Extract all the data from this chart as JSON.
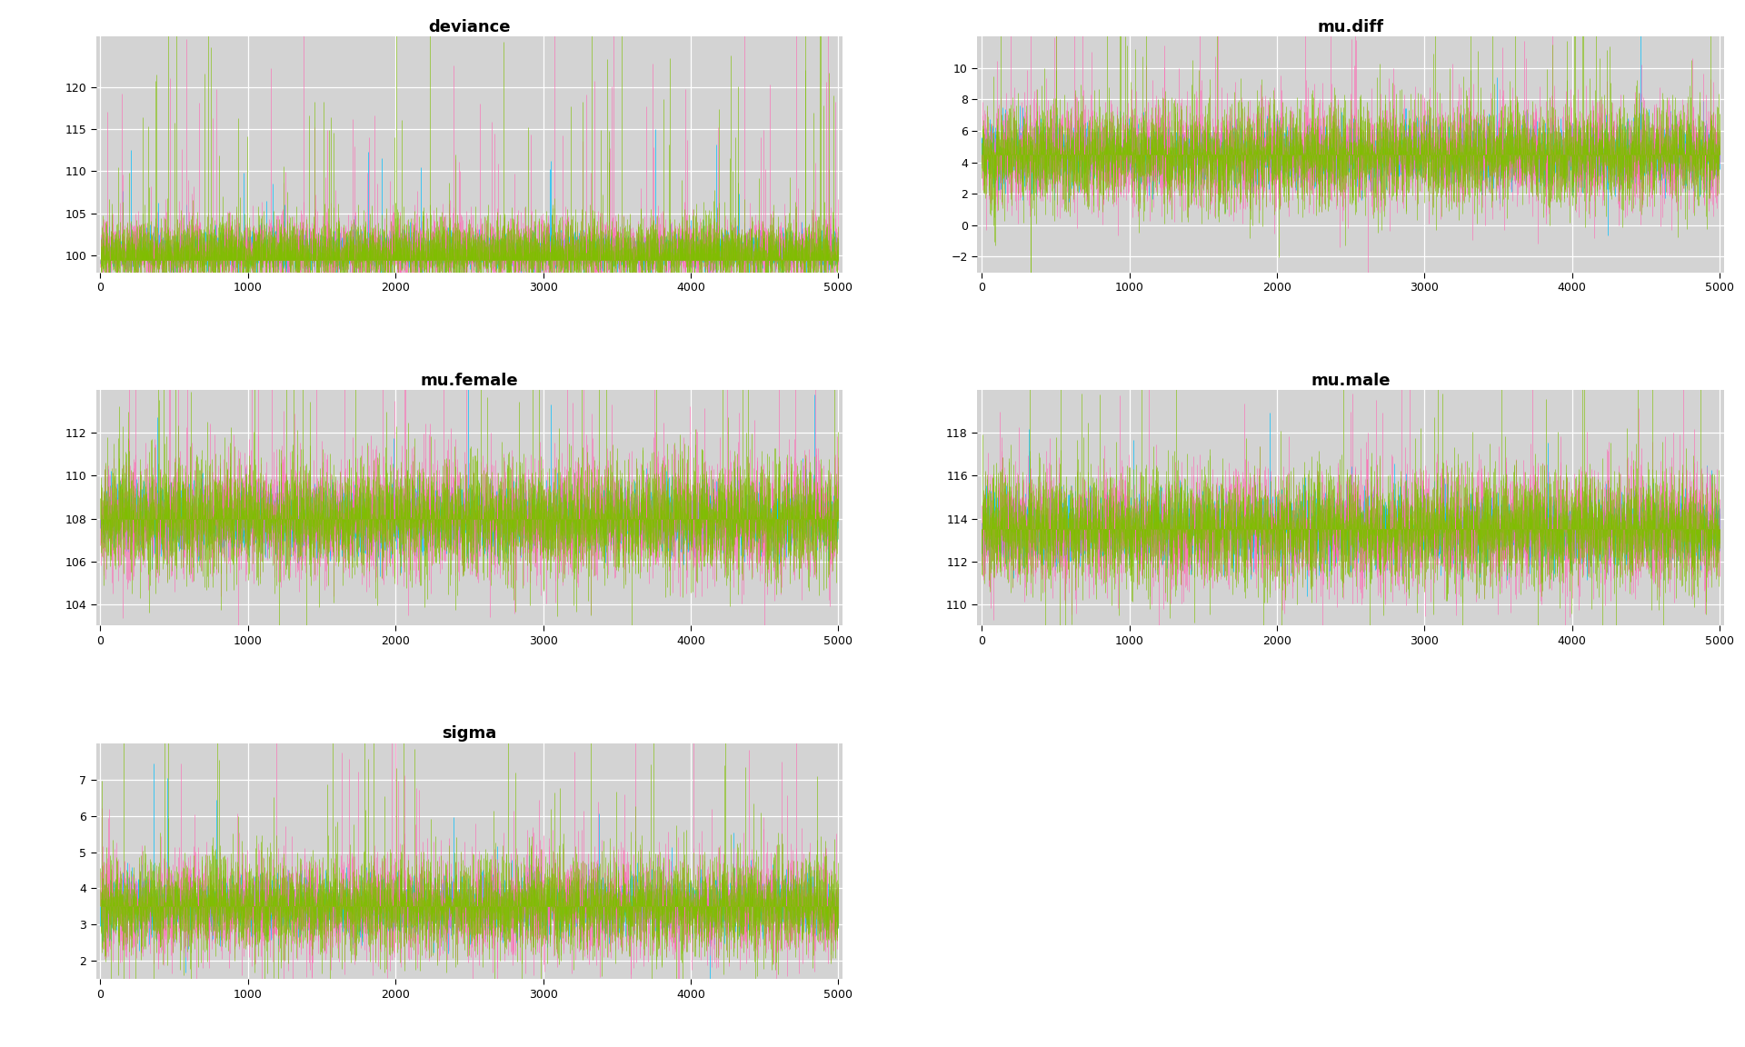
{
  "panels": [
    {
      "title": "deviance",
      "ylim": [
        98.0,
        126.0
      ],
      "yticks": [
        100,
        105,
        110,
        115,
        120
      ],
      "baseline": 99.5,
      "mean": 100.5,
      "std": 2.2,
      "spike_prob": 0.025,
      "spike_scale": 10.0
    },
    {
      "title": "mu.diff",
      "ylim": [
        -3.0,
        12.0
      ],
      "yticks": [
        -2,
        0,
        2,
        4,
        6,
        8,
        10
      ],
      "baseline": 4.5,
      "mean": 4.5,
      "std": 1.8,
      "spike_prob": 0.018,
      "spike_scale": 4.0
    },
    {
      "title": "mu.female",
      "ylim": [
        103.0,
        114.0
      ],
      "yticks": [
        104,
        106,
        108,
        110,
        112
      ],
      "baseline": 108.0,
      "mean": 108.0,
      "std": 1.5,
      "spike_prob": 0.02,
      "spike_scale": 3.0
    },
    {
      "title": "mu.male",
      "ylim": [
        109.0,
        120.0
      ],
      "yticks": [
        110,
        112,
        114,
        116,
        118
      ],
      "baseline": 113.5,
      "mean": 113.5,
      "std": 1.5,
      "spike_prob": 0.02,
      "spike_scale": 3.0
    },
    {
      "title": "sigma",
      "ylim": [
        1.5,
        8.0
      ],
      "yticks": [
        2,
        3,
        4,
        5,
        6,
        7
      ],
      "baseline": 3.5,
      "mean": 3.5,
      "std": 0.75,
      "spike_prob": 0.02,
      "spike_scale": 2.0
    }
  ],
  "n_iter": 5000,
  "chain_colors": [
    "#00BFFF",
    "#FF69B4",
    "#7FBF00"
  ],
  "bg_color": "#D3D3D3",
  "fig_bg_color": "#FFFFFF",
  "title_fontsize": 13,
  "tick_fontsize": 9,
  "linewidth": 0.5,
  "xticks": [
    0,
    1000,
    2000,
    3000,
    4000,
    5000
  ],
  "grid_color": "#FFFFFF",
  "outer_bg": "#E8E8E8"
}
